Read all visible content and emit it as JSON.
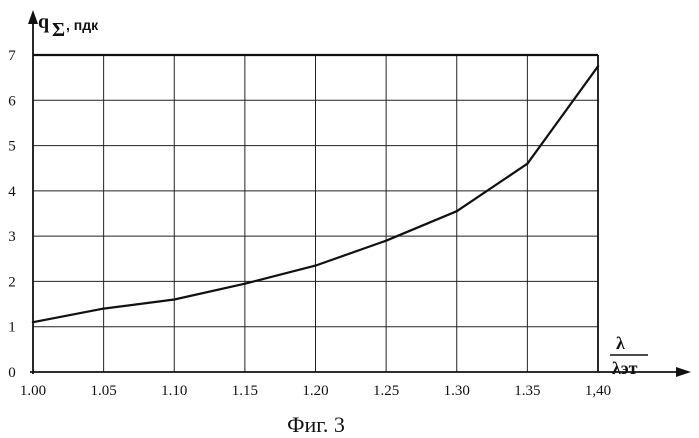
{
  "chart_data": {
    "type": "line",
    "x": [
      1.0,
      1.05,
      1.1,
      1.15,
      1.2,
      1.25,
      1.3,
      1.35,
      1.4
    ],
    "series": [
      {
        "values": [
          1.1,
          1.4,
          1.6,
          1.95,
          2.35,
          2.9,
          3.55,
          4.6,
          6.75
        ]
      }
    ],
    "x_ticks": [
      "1.00",
      "1.05",
      "1.10",
      "1.15",
      "1.20",
      "1.25",
      "1.30",
      "1.35",
      "1,40"
    ],
    "y_ticks": [
      "0",
      "1",
      "2",
      "3",
      "4",
      "5",
      "6",
      "7"
    ],
    "xlim": [
      1.0,
      1.4
    ],
    "ylim": [
      0,
      7
    ],
    "grid": true,
    "ylabel_symbol": "q",
    "ylabel_subscript": "Σ",
    "ylabel_unit": ", пдк",
    "xlabel_numerator": "λ",
    "xlabel_denominator": "λэт",
    "caption": "Фиг. 3"
  }
}
